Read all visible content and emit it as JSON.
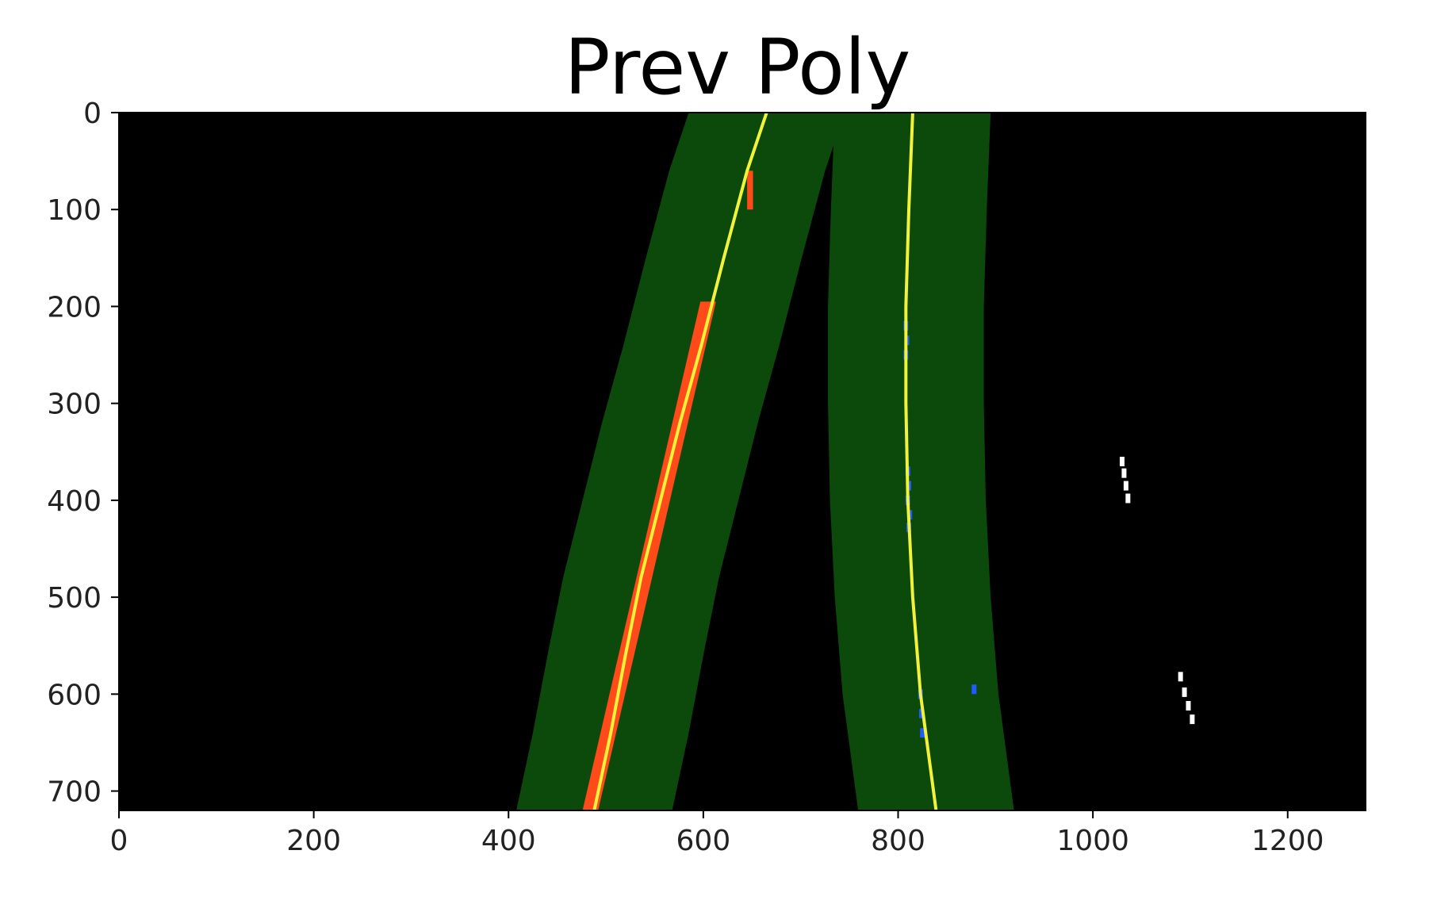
{
  "chart_data": {
    "type": "image",
    "title": "Prev Poly",
    "xlabel": "",
    "ylabel": "",
    "xlim": [
      0,
      1280
    ],
    "ylim": [
      720,
      0
    ],
    "y_inverted": true,
    "grid": false,
    "legend": "none",
    "x_ticks": [
      0,
      200,
      400,
      600,
      800,
      1000,
      1200
    ],
    "y_ticks": [
      0,
      100,
      200,
      300,
      400,
      500,
      600,
      700
    ],
    "background_color": "#000000",
    "search_window_margin": 80,
    "colors": {
      "search_window": "#0b4a0b",
      "left_lane_pixels": "#ff4a1a",
      "right_lane_pixels": "#1f5bff",
      "fit_line": "#f2f23a",
      "noise_pixels": "#ffffff"
    },
    "series": [
      {
        "kind": "fit",
        "points": [
          {
            "x": 665,
            "y": 0
          },
          {
            "x": 645,
            "y": 60
          },
          {
            "x": 621,
            "y": 150
          },
          {
            "x": 598,
            "y": 240
          },
          {
            "x": 576,
            "y": 320
          },
          {
            "x": 556,
            "y": 400
          },
          {
            "x": 536,
            "y": 480
          },
          {
            "x": 520,
            "y": 560
          },
          {
            "x": 505,
            "y": 640
          },
          {
            "x": 488,
            "y": 720
          }
        ]
      },
      {
        "kind": "fit",
        "points": [
          {
            "x": 815,
            "y": 0
          },
          {
            "x": 811,
            "y": 100
          },
          {
            "x": 808,
            "y": 200
          },
          {
            "x": 808,
            "y": 300
          },
          {
            "x": 810,
            "y": 400
          },
          {
            "x": 815,
            "y": 500
          },
          {
            "x": 823,
            "y": 600
          },
          {
            "x": 839,
            "y": 720
          }
        ]
      },
      {
        "kind": "lane_pixels",
        "side": "left",
        "segments": [
          {
            "y0": 60,
            "y1": 100,
            "x": 648,
            "w": 6
          },
          {
            "y0": 195,
            "y1": 720,
            "x_top": 605,
            "x_bottom": 484,
            "w": 16
          }
        ]
      },
      {
        "kind": "lane_pixels",
        "side": "right",
        "points": [
          {
            "x": 808,
            "y": 220
          },
          {
            "x": 809,
            "y": 235
          },
          {
            "x": 808,
            "y": 250
          },
          {
            "x": 810,
            "y": 370
          },
          {
            "x": 811,
            "y": 385
          },
          {
            "x": 810,
            "y": 400
          },
          {
            "x": 812,
            "y": 415
          },
          {
            "x": 811,
            "y": 428
          },
          {
            "x": 823,
            "y": 600
          },
          {
            "x": 824,
            "y": 620
          },
          {
            "x": 825,
            "y": 640
          },
          {
            "x": 878,
            "y": 595
          }
        ]
      },
      {
        "kind": "noise",
        "points": [
          {
            "x": 1030,
            "y": 360
          },
          {
            "x": 1032,
            "y": 372
          },
          {
            "x": 1034,
            "y": 385
          },
          {
            "x": 1036,
            "y": 398
          },
          {
            "x": 1090,
            "y": 582
          },
          {
            "x": 1094,
            "y": 598
          },
          {
            "x": 1098,
            "y": 612
          },
          {
            "x": 1102,
            "y": 626
          }
        ]
      }
    ]
  }
}
